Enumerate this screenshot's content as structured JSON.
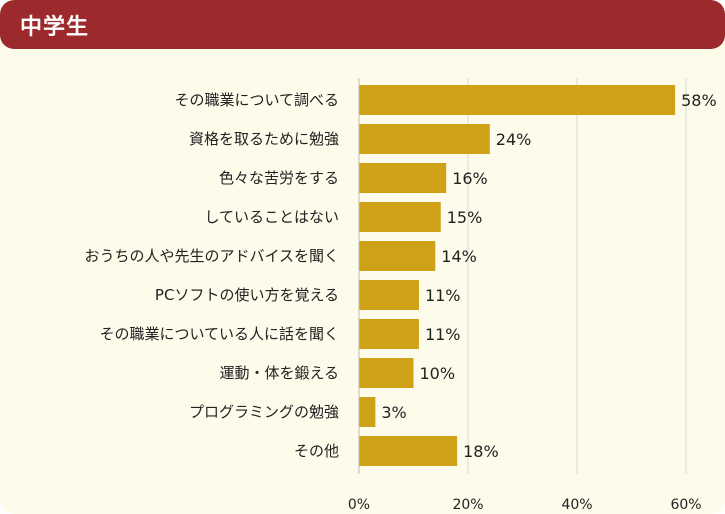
{
  "header": {
    "title": "中学生"
  },
  "colors": {
    "bar": "#cfa117",
    "header": "#9c2a2c",
    "panel": "#fdfbea",
    "grid": "#d9d9d9"
  },
  "chart_data": {
    "type": "bar",
    "orientation": "horizontal",
    "categories": [
      "その職業について調べる",
      "資格を取るために勉強",
      "色々な苦労をする",
      "していることはない",
      "おうちの人や先生のアドバイスを聞く",
      "PCソフトの使い方を覚える",
      "その職業についている人に話を聞く",
      "運動・体を鍛える",
      "プログラミングの勉強",
      "その他"
    ],
    "values": [
      58,
      24,
      16,
      15,
      14,
      11,
      11,
      10,
      3,
      18
    ],
    "value_labels": [
      "58%",
      "24%",
      "16%",
      "15%",
      "14%",
      "11%",
      "11%",
      "10%",
      "3%",
      "18%"
    ],
    "xlim": [
      0,
      60
    ],
    "xticks": [
      0,
      20,
      40,
      60
    ],
    "xtick_labels": [
      "0%",
      "20%",
      "40%",
      "60%"
    ],
    "grid": true,
    "legend": "none"
  }
}
